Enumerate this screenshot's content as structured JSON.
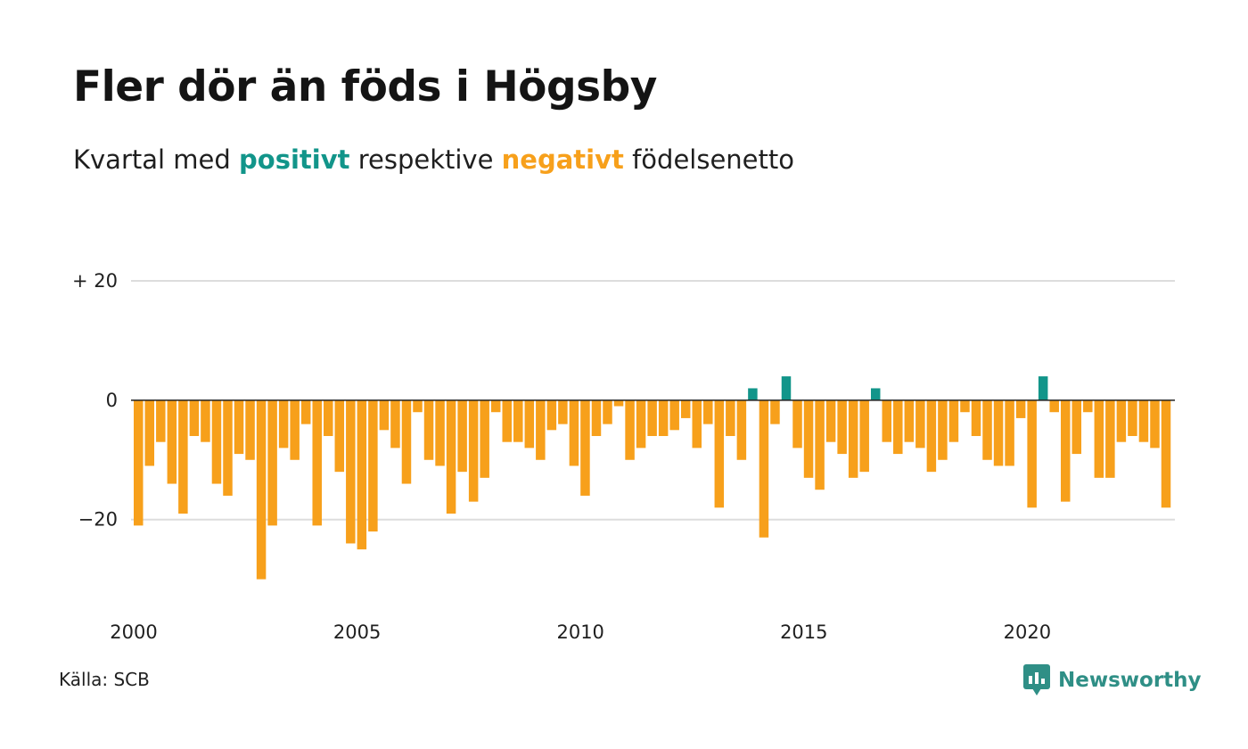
{
  "title": "Fler dör än föds i Högsby",
  "subtitle": {
    "before": "Kvartal med ",
    "positive": "positivt",
    "middle": " respektive ",
    "negative": "negativt",
    "after": " födelsenetto"
  },
  "source": "Källa: SCB",
  "brand": {
    "name": "Newsworthy",
    "icon": "newsworthy-logo-icon"
  },
  "colors": {
    "positive": "#12958a",
    "negative": "#f7a01b",
    "grid": "#dddddd",
    "zero": "#222222"
  },
  "chart_data": {
    "type": "bar",
    "start_year": 2000,
    "x_ticks": [
      2000,
      2005,
      2010,
      2015,
      2020
    ],
    "x_tick_labels": [
      "2000",
      "2005",
      "2010",
      "2015",
      "2020"
    ],
    "y_ticks": [
      20,
      0,
      -20
    ],
    "y_tick_labels": [
      "+ 20",
      "0",
      "−20"
    ],
    "ylim": [
      -32,
      20
    ],
    "grid": true,
    "values": [
      -21,
      -11,
      -7,
      -14,
      -19,
      -6,
      -7,
      -14,
      -16,
      -9,
      -10,
      -30,
      -21,
      -8,
      -10,
      -4,
      -21,
      -6,
      -12,
      -24,
      -25,
      -22,
      -5,
      -8,
      -14,
      -2,
      -10,
      -11,
      -19,
      -12,
      -17,
      -13,
      -2,
      -7,
      -7,
      -8,
      -10,
      -5,
      -4,
      -11,
      -16,
      -6,
      -4,
      -1,
      -10,
      -8,
      -6,
      -6,
      -5,
      -3,
      -8,
      -4,
      -18,
      -6,
      -10,
      2,
      -23,
      -4,
      4,
      -8,
      -13,
      -15,
      -7,
      -9,
      -13,
      -12,
      2,
      -7,
      -9,
      -7,
      -8,
      -12,
      -10,
      -7,
      -2,
      -6,
      -10,
      -11,
      -11,
      -3,
      -18,
      4,
      -2,
      -17,
      -9,
      -2,
      -13,
      -13,
      -7,
      -6,
      -7,
      -8,
      -18
    ]
  }
}
